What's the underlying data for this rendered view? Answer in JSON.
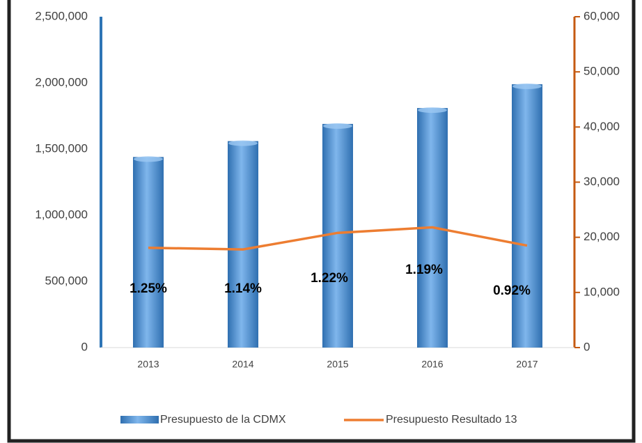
{
  "chart_data": {
    "type": "bar_line",
    "categories": [
      "2013",
      "2014",
      "2015",
      "2016",
      "2017"
    ],
    "series": [
      {
        "name": "Presupuesto de la CDMX",
        "type": "bar",
        "color": "#5b9bd5",
        "values": [
          1440000,
          1560000,
          1690000,
          1810000,
          1990000
        ]
      },
      {
        "name": "Presupuesto Resultado 13",
        "type": "line",
        "axis": "y2",
        "color": "#ed7d31",
        "values": [
          18100,
          17800,
          20800,
          21800,
          18500
        ]
      }
    ],
    "annotations": [
      "1.25%",
      "1.14%",
      "1.22%",
      "1.19%",
      "0.92%"
    ],
    "ylim": [
      0,
      2500000
    ],
    "yticks": [
      0,
      {
        "value": 500000,
        "label": "500,000"
      },
      {
        "value": 1000000,
        "label": "1,000,000"
      },
      {
        "value": 1500000,
        "label": "1,500,000"
      },
      {
        "value": 2000000,
        "label": "2,000,000"
      },
      {
        "value": 2500000,
        "label": "2,500,000"
      }
    ],
    "y2lim": [
      0,
      60000
    ],
    "y2ticks": [
      0,
      {
        "value": 10000,
        "label": "10,000"
      },
      {
        "value": 20000,
        "label": "20,000"
      },
      {
        "value": 30000,
        "label": "30,000"
      },
      {
        "value": 40000,
        "label": "40,000"
      },
      {
        "value": 50000,
        "label": "50,000"
      },
      {
        "value": 60000,
        "label": "60,000"
      }
    ],
    "left_axis_color": "#2e75b6",
    "right_axis_color": "#c55a11",
    "legend": "bottom"
  }
}
